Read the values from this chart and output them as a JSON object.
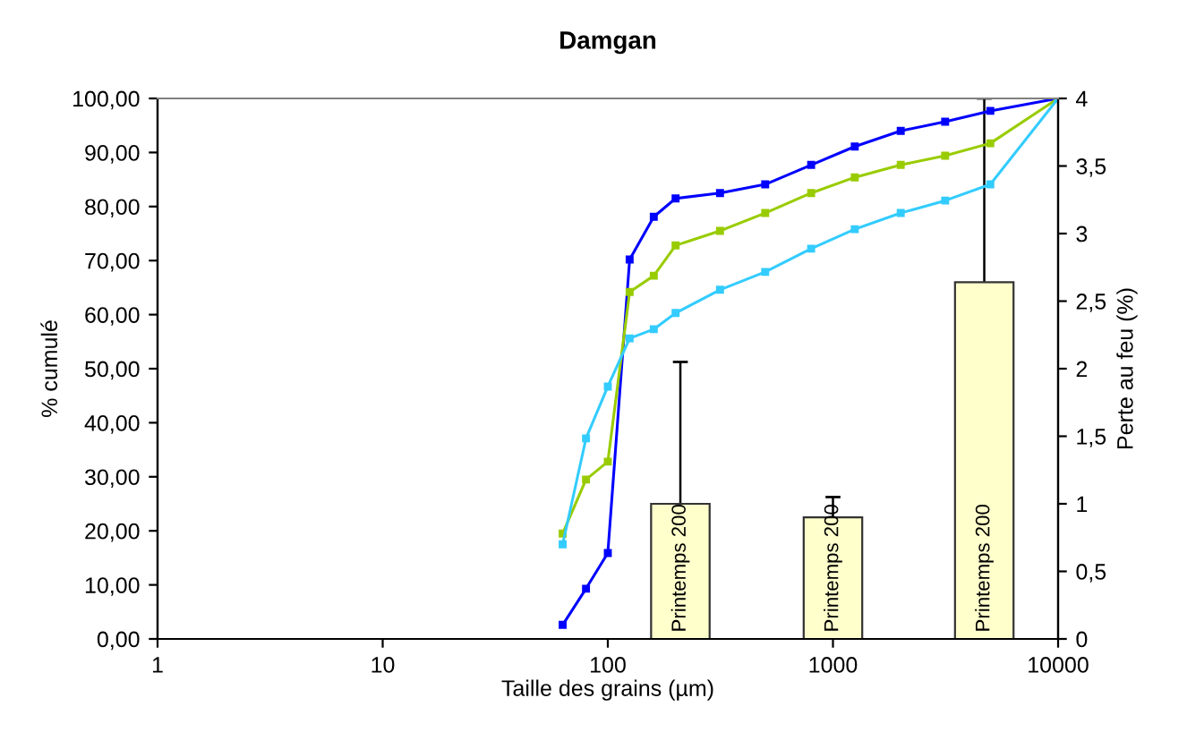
{
  "chart_data": {
    "type": "line",
    "title": "Damgan",
    "xlabel": "Taille des grains (µm)",
    "ylabel": "% cumulé",
    "y2label": "Perte au feu (%)",
    "log": "x",
    "grid": false,
    "legend": false,
    "marker": "square",
    "line_style": "solid",
    "xlim": [
      1,
      10000
    ],
    "xticks": [
      1,
      10,
      100,
      1000,
      10000
    ],
    "ylim": [
      0,
      100
    ],
    "yticks": [
      {
        "value": 0,
        "label": "0,00"
      },
      {
        "value": 10,
        "label": "10,00"
      },
      {
        "value": 20,
        "label": "20,00"
      },
      {
        "value": 30,
        "label": "30,00"
      },
      {
        "value": 40,
        "label": "40,00"
      },
      {
        "value": 50,
        "label": "50,00"
      },
      {
        "value": 60,
        "label": "60,00"
      },
      {
        "value": 70,
        "label": "70,00"
      },
      {
        "value": 80,
        "label": "80,00"
      },
      {
        "value": 90,
        "label": "90,00"
      },
      {
        "value": 100,
        "label": "100,00"
      }
    ],
    "y2lim": [
      0,
      4
    ],
    "y2ticks": [
      0,
      {
        "value": 0.5,
        "label": "0,5"
      },
      1,
      {
        "value": 1.5,
        "label": "1,5"
      },
      2,
      {
        "value": 2.5,
        "label": "2,5"
      },
      3,
      {
        "value": 3.5,
        "label": "3,5"
      },
      4
    ],
    "series": [
      {
        "color": "#0000ff",
        "x": [
          63,
          80,
          100,
          125,
          160,
          200,
          315,
          500,
          800,
          1250,
          2000,
          3150,
          5000,
          10000
        ],
        "values": [
          2.6,
          9.3,
          15.9,
          70.2,
          78.1,
          81.5,
          82.5,
          84.1,
          87.7,
          91.1,
          94.0,
          95.7,
          97.7,
          100
        ]
      },
      {
        "color": "#99cc00",
        "x": [
          63,
          80,
          100,
          125,
          160,
          200,
          315,
          500,
          800,
          1250,
          2000,
          3150,
          5000,
          10000
        ],
        "values": [
          19.5,
          29.5,
          32.8,
          64.2,
          67.2,
          72.8,
          75.5,
          78.8,
          82.5,
          85.4,
          87.7,
          89.4,
          91.7,
          100
        ]
      },
      {
        "color": "#33ccff",
        "x": [
          63,
          80,
          100,
          125,
          160,
          200,
          315,
          500,
          800,
          1250,
          2000,
          3150,
          5000,
          10000
        ],
        "values": [
          17.5,
          37.1,
          46.7,
          55.6,
          57.3,
          60.3,
          64.6,
          67.9,
          72.2,
          75.8,
          78.8,
          81.1,
          84.1,
          100
        ]
      },
      {
        "type": "bar",
        "axis": "y2",
        "color": "#ffffcc",
        "x": [
          210,
          1000,
          4700
        ],
        "values": [
          1.0,
          0.9,
          2.64
        ],
        "errors": [
          1.05,
          0.15,
          1.36
        ],
        "value_labels": [
          "Printemps 200",
          "Printemps 200",
          "Printemps 200"
        ]
      }
    ]
  }
}
